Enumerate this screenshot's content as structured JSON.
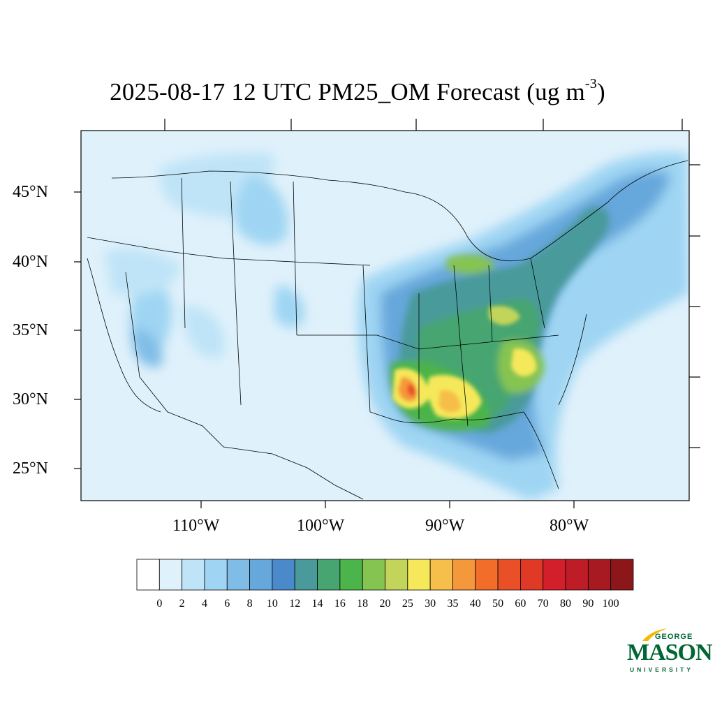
{
  "title": {
    "main": "2025-08-17 12 UTC PM25_OM Forecast (ug m",
    "sup": "-3",
    "close": ")"
  },
  "map": {
    "lat_labels": [
      "45°N",
      "40°N",
      "35°N",
      "30°N",
      "25°N"
    ],
    "lon_labels": [
      "110°W",
      "100°W",
      "90°W",
      "80°W"
    ],
    "background_color": "#dff1fb",
    "border_color": "#000000"
  },
  "colorbar": {
    "levels": [
      "0",
      "2",
      "4",
      "6",
      "8",
      "10",
      "12",
      "14",
      "16",
      "18",
      "20",
      "25",
      "30",
      "35",
      "40",
      "50",
      "60",
      "70",
      "80",
      "90",
      "100"
    ],
    "colors": [
      "#ffffff",
      "#dff1fb",
      "#bfe4f7",
      "#9fd5f3",
      "#80bde6",
      "#66a7dc",
      "#4a8acb",
      "#4a9a9b",
      "#46a571",
      "#4bb44a",
      "#86c451",
      "#c2d55a",
      "#f5e85a",
      "#f6be4a",
      "#f5983b",
      "#f26c2a",
      "#ea5028",
      "#e03a26",
      "#d31f2b",
      "#be1c26",
      "#a81a22",
      "#8c1619"
    ]
  },
  "logo": {
    "george": "GEORGE",
    "mason": "MASON",
    "university": "UNIVERSITY",
    "color": "#006633",
    "accent": "#f2b900"
  }
}
